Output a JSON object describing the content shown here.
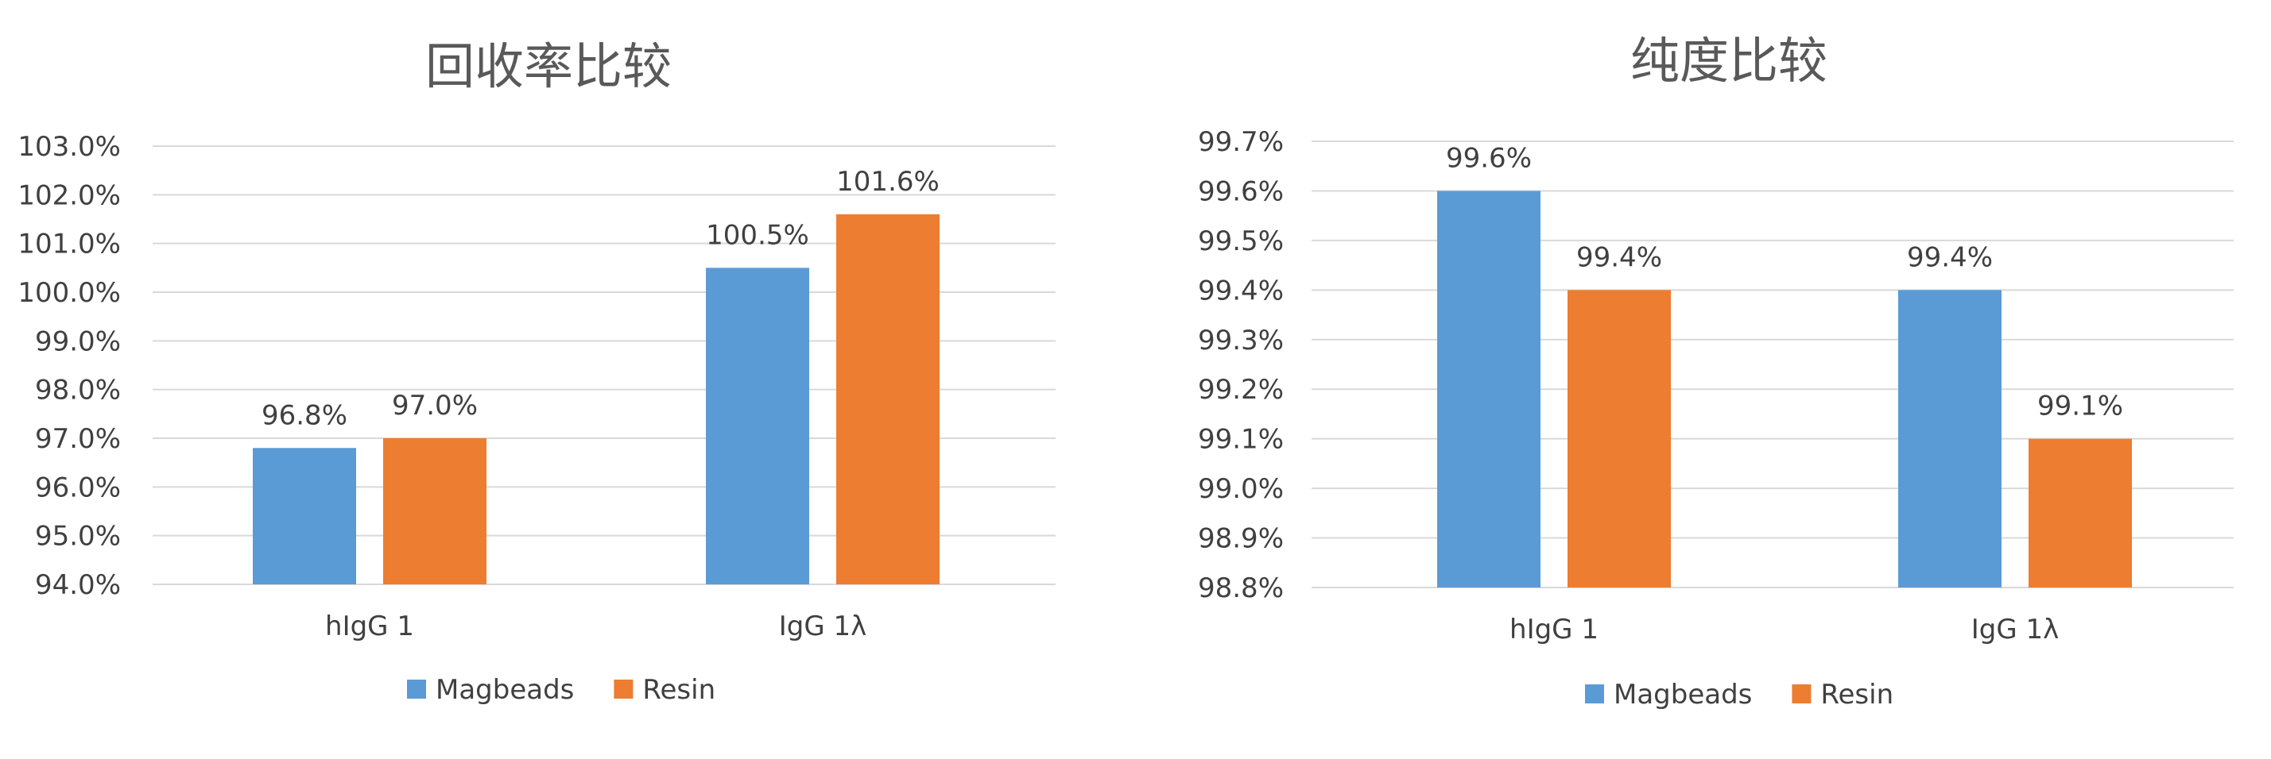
{
  "colors": {
    "series_0": "#5B9BD5",
    "series_1": "#ED7D31",
    "grid": "#D9D9D9",
    "text": "#404040",
    "title": "#595959"
  },
  "chart_data": [
    {
      "type": "bar",
      "title": "回收率比较",
      "categories": [
        "hIgG 1",
        "IgG 1λ"
      ],
      "series": [
        {
          "name": "Magbeads",
          "values": [
            96.8,
            100.5
          ],
          "labels": [
            "96.8%",
            "100.5%"
          ]
        },
        {
          "name": "Resin",
          "values": [
            97.0,
            101.6
          ],
          "labels": [
            "97.0%",
            "101.6%"
          ]
        }
      ],
      "ylim": [
        94.0,
        103.0
      ],
      "yticks": [
        "94.0%",
        "95.0%",
        "96.0%",
        "97.0%",
        "98.0%",
        "99.0%",
        "100.0%",
        "101.0%",
        "102.0%",
        "103.0%"
      ],
      "grid": true,
      "legend": "bottom"
    },
    {
      "type": "bar",
      "title": "纯度比较",
      "categories": [
        "hIgG 1",
        "IgG 1λ"
      ],
      "series": [
        {
          "name": "Magbeads",
          "values": [
            99.6,
            99.4
          ],
          "labels": [
            "99.6%",
            "99.4%"
          ]
        },
        {
          "name": "Resin",
          "values": [
            99.4,
            99.1
          ],
          "labels": [
            "99.4%",
            "99.1%"
          ]
        }
      ],
      "ylim": [
        98.8,
        99.7
      ],
      "yticks": [
        "98.8%",
        "98.9%",
        "99.0%",
        "99.1%",
        "99.2%",
        "99.3%",
        "99.4%",
        "99.5%",
        "99.6%",
        "99.7%"
      ],
      "grid": true,
      "legend": "bottom"
    }
  ]
}
